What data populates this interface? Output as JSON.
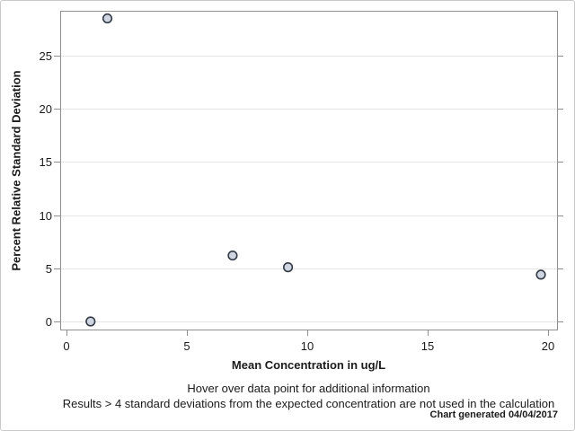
{
  "chart_data": {
    "type": "scatter",
    "title": "",
    "xlabel": "Mean Concentration in ug/L",
    "ylabel": "Percent Relative Standard Deviation",
    "points": [
      {
        "x": 1.0,
        "y": 0.0
      },
      {
        "x": 1.7,
        "y": 28.5
      },
      {
        "x": 6.9,
        "y": 6.2
      },
      {
        "x": 9.2,
        "y": 5.1
      },
      {
        "x": 19.7,
        "y": 4.4
      }
    ],
    "x_ticks": [
      0,
      5,
      10,
      15,
      20
    ],
    "y_ticks": [
      0,
      5,
      10,
      15,
      20,
      25
    ],
    "xlim": [
      -0.26,
      20.37
    ],
    "ylim": [
      -0.76,
      29.22
    ],
    "grid": "horizontal-only",
    "legend": "none",
    "marker": {
      "shape": "circle",
      "fill": "#cfd6e2",
      "stroke": "#343b46",
      "radius": 4.8,
      "stroke_width": 1.6
    },
    "colors": {
      "gridline": "#e6e6e6",
      "frame": "#8f8f8f",
      "tick": "#8f8f8f",
      "text": "#1a1a1a",
      "background": "#ffffff"
    }
  },
  "footnotes": {
    "hover": "Hover over data point for additional information",
    "exclusion": "Results > 4 standard deviations from the expected concentration are not used in the calculation",
    "generated": "Chart generated 04/04/2017"
  }
}
